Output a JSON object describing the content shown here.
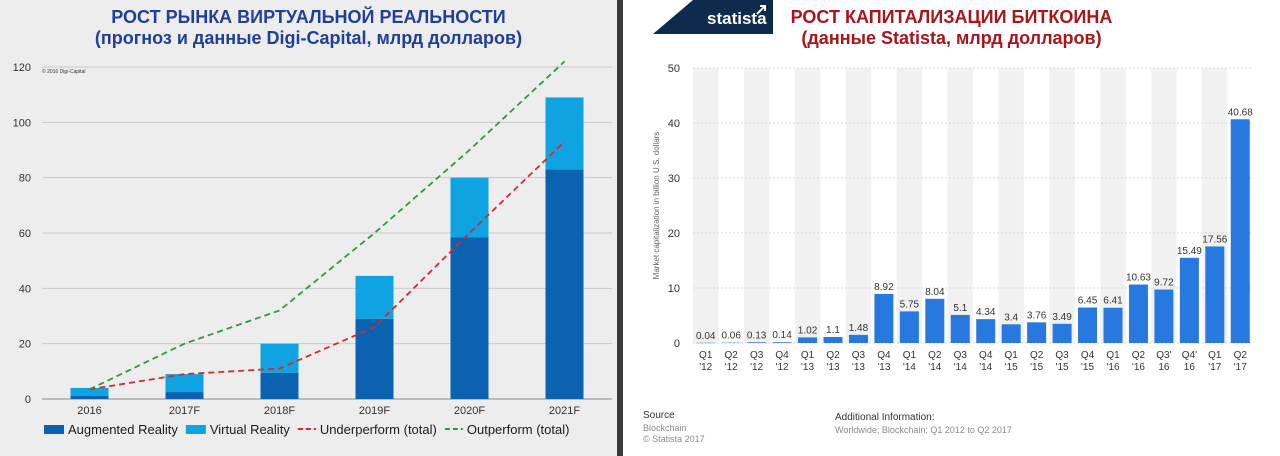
{
  "left": {
    "title_line1": "РОСТ РЫНКА ВИРТУАЛЬНОЙ РЕАЛЬНОСТИ",
    "title_line2": "(прогноз и данные Digi-Capital, млрд долларов)",
    "copyright": "© 2016 Digi-Capital"
  },
  "right": {
    "title_line1": "РОСТ КАПИТАЛИЗАЦИИ БИТКОИНА",
    "title_line2": "(данные Statista, млрд долларов)",
    "source_label": "Source",
    "source_value": "Blockchain",
    "source_copyright": "© Statista 2017",
    "additional_label": "Additional Information:",
    "additional_value": "Worldwide; Blockchain; Q1 2012 to Q2 2017",
    "logo_text": "statista"
  },
  "chart_data": [
    {
      "type": "bar",
      "stacked": true,
      "title": "РОСТ РЫНКА ВИРТУАЛЬНОЙ РЕАЛЬНОСТИ",
      "subtitle": "(прогноз и данные Digi-Capital, млрд долларов)",
      "categories": [
        "2016",
        "2017F",
        "2018F",
        "2019F",
        "2020F",
        "2021F"
      ],
      "ylim": [
        0,
        120
      ],
      "yticks": [
        0,
        20,
        40,
        60,
        80,
        100,
        120
      ],
      "grid": true,
      "legend_position": "bottom",
      "series": [
        {
          "name": "Augmented Reality",
          "kind": "bar",
          "color": "#0a62b0",
          "values": [
            1.2,
            2.5,
            9.5,
            29,
            58.5,
            83
          ]
        },
        {
          "name": "Virtual Reality",
          "kind": "bar",
          "color": "#0fa3e1",
          "values": [
            2.8,
            6.5,
            10.5,
            15.5,
            21.5,
            26
          ]
        },
        {
          "name": "Underperform (total)",
          "kind": "line",
          "dash": true,
          "color": "#d42a2a",
          "values": [
            3.5,
            9,
            11,
            26,
            60,
            93
          ]
        },
        {
          "name": "Outperform (total)",
          "kind": "line",
          "dash": true,
          "color": "#2e9a3a",
          "values": [
            3.5,
            20,
            32,
            60,
            90,
            122
          ]
        }
      ]
    },
    {
      "type": "bar",
      "title": "РОСТ КАПИТАЛИЗАЦИИ БИТКОИНА",
      "subtitle": "(данные Statista, млрд долларов)",
      "ylabel": "Market capitalization in billion U.S. dollars",
      "ylim": [
        0,
        50
      ],
      "yticks": [
        0,
        10,
        20,
        30,
        40,
        50
      ],
      "grid": true,
      "color": "#2778df",
      "categories": [
        [
          "Q1",
          "'12"
        ],
        [
          "Q2",
          "'12"
        ],
        [
          "Q3",
          "'12"
        ],
        [
          "Q4",
          "'12"
        ],
        [
          "Q1",
          "'13"
        ],
        [
          "Q2",
          "'13"
        ],
        [
          "Q3",
          "'13"
        ],
        [
          "Q4",
          "'13"
        ],
        [
          "Q1",
          "'14"
        ],
        [
          "Q2",
          "'14"
        ],
        [
          "Q3",
          "'14"
        ],
        [
          "Q4",
          "'14"
        ],
        [
          "Q1",
          "'15"
        ],
        [
          "Q2",
          "'15"
        ],
        [
          "Q3",
          "'15"
        ],
        [
          "Q4",
          "'15"
        ],
        [
          "Q1",
          "'16"
        ],
        [
          "Q2",
          "'16"
        ],
        [
          "Q3'",
          "16"
        ],
        [
          "Q4'",
          "16"
        ],
        [
          "Q1",
          "'17"
        ],
        [
          "Q2",
          "'17"
        ]
      ],
      "values": [
        0.04,
        0.06,
        0.13,
        0.14,
        1.02,
        1.1,
        1.48,
        8.92,
        5.75,
        8.04,
        5.1,
        4.34,
        3.4,
        3.76,
        3.49,
        6.45,
        6.41,
        10.63,
        9.72,
        15.49,
        17.56,
        40.68
      ],
      "data_labels": [
        "0.04",
        "0.06",
        "0.13",
        "0.14",
        "1.02",
        "1.1",
        "1.48",
        "8.92",
        "5.75",
        "8.04",
        "5.1",
        "4.34",
        "3.4",
        "3.76",
        "3.49",
        "6.45",
        "6.41",
        "10.63",
        "9.72",
        "15.49",
        "17.56",
        "40.68"
      ]
    }
  ]
}
